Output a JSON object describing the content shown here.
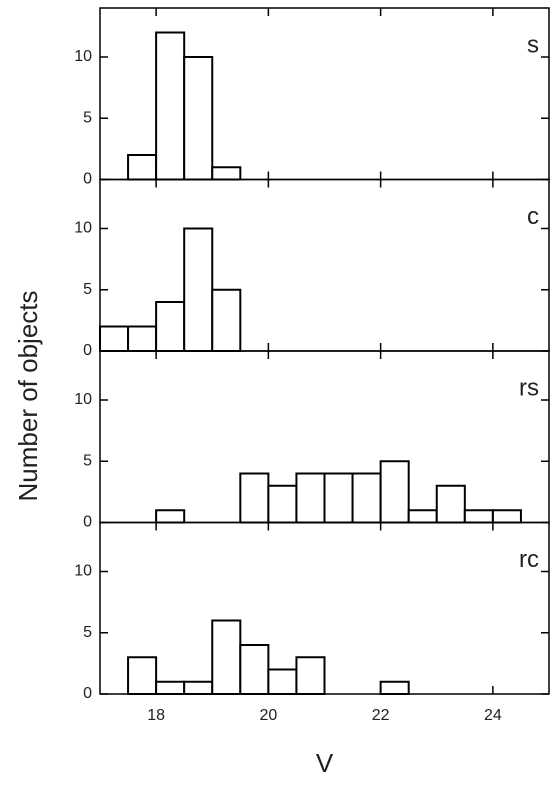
{
  "chart_data": [
    {
      "type": "histogram",
      "label": "s",
      "y_label": "Number of objects",
      "bins": [
        17,
        17.5,
        18,
        18.5,
        19,
        19.5,
        20,
        20.5,
        21,
        21.5,
        22,
        22.5,
        23,
        23.5,
        24,
        24.5
      ],
      "values": [
        0,
        2,
        12,
        10,
        1,
        0,
        0,
        0,
        0,
        0,
        0,
        0,
        0,
        0,
        0
      ],
      "xlim": [
        17,
        25
      ],
      "xticks": [
        18,
        20,
        22,
        24
      ],
      "ylim": [
        0,
        14
      ],
      "yticks": [
        0,
        5,
        10
      ],
      "color": "#ffffff"
    },
    {
      "type": "histogram",
      "label": "c",
      "bins": [
        17,
        17.5,
        18,
        18.5,
        19,
        19.5,
        20,
        20.5,
        21,
        21.5,
        22,
        22.5,
        23,
        23.5,
        24,
        24.5
      ],
      "values": [
        2,
        2,
        4,
        10,
        5,
        0,
        0,
        0,
        0,
        0,
        0,
        0,
        0,
        0,
        0
      ],
      "xlim": [
        17,
        25
      ],
      "xticks": [
        18,
        20,
        22,
        24
      ],
      "ylim": [
        0,
        14
      ],
      "yticks": [
        0,
        5,
        10
      ],
      "color": "#ffffff"
    },
    {
      "type": "histogram",
      "label": "rs",
      "bins": [
        17,
        17.5,
        18,
        18.5,
        19,
        19.5,
        20,
        20.5,
        21,
        21.5,
        22,
        22.5,
        23,
        23.5,
        24,
        24.5
      ],
      "values": [
        0,
        0,
        1,
        0,
        0,
        4,
        3,
        4,
        4,
        4,
        5,
        1,
        3,
        1,
        1
      ],
      "xlim": [
        17,
        25
      ],
      "xticks": [
        18,
        20,
        22,
        24
      ],
      "ylim": [
        0,
        14
      ],
      "yticks": [
        0,
        5,
        10
      ],
      "color": "#ffffff"
    },
    {
      "type": "histogram",
      "label": "rc",
      "x_label": "V",
      "bins": [
        17,
        17.5,
        18,
        18.5,
        19,
        19.5,
        20,
        20.5,
        21,
        21.5,
        22,
        22.5,
        23,
        23.5,
        24,
        24.5
      ],
      "values": [
        0,
        3,
        1,
        1,
        6,
        4,
        2,
        3,
        0,
        0,
        1,
        0,
        0,
        0,
        0
      ],
      "xlim": [
        17,
        25
      ],
      "xticks": [
        18,
        20,
        22,
        24
      ],
      "ylim": [
        0,
        14
      ],
      "yticks": [
        0,
        5,
        10
      ],
      "color": "#ffffff"
    }
  ]
}
